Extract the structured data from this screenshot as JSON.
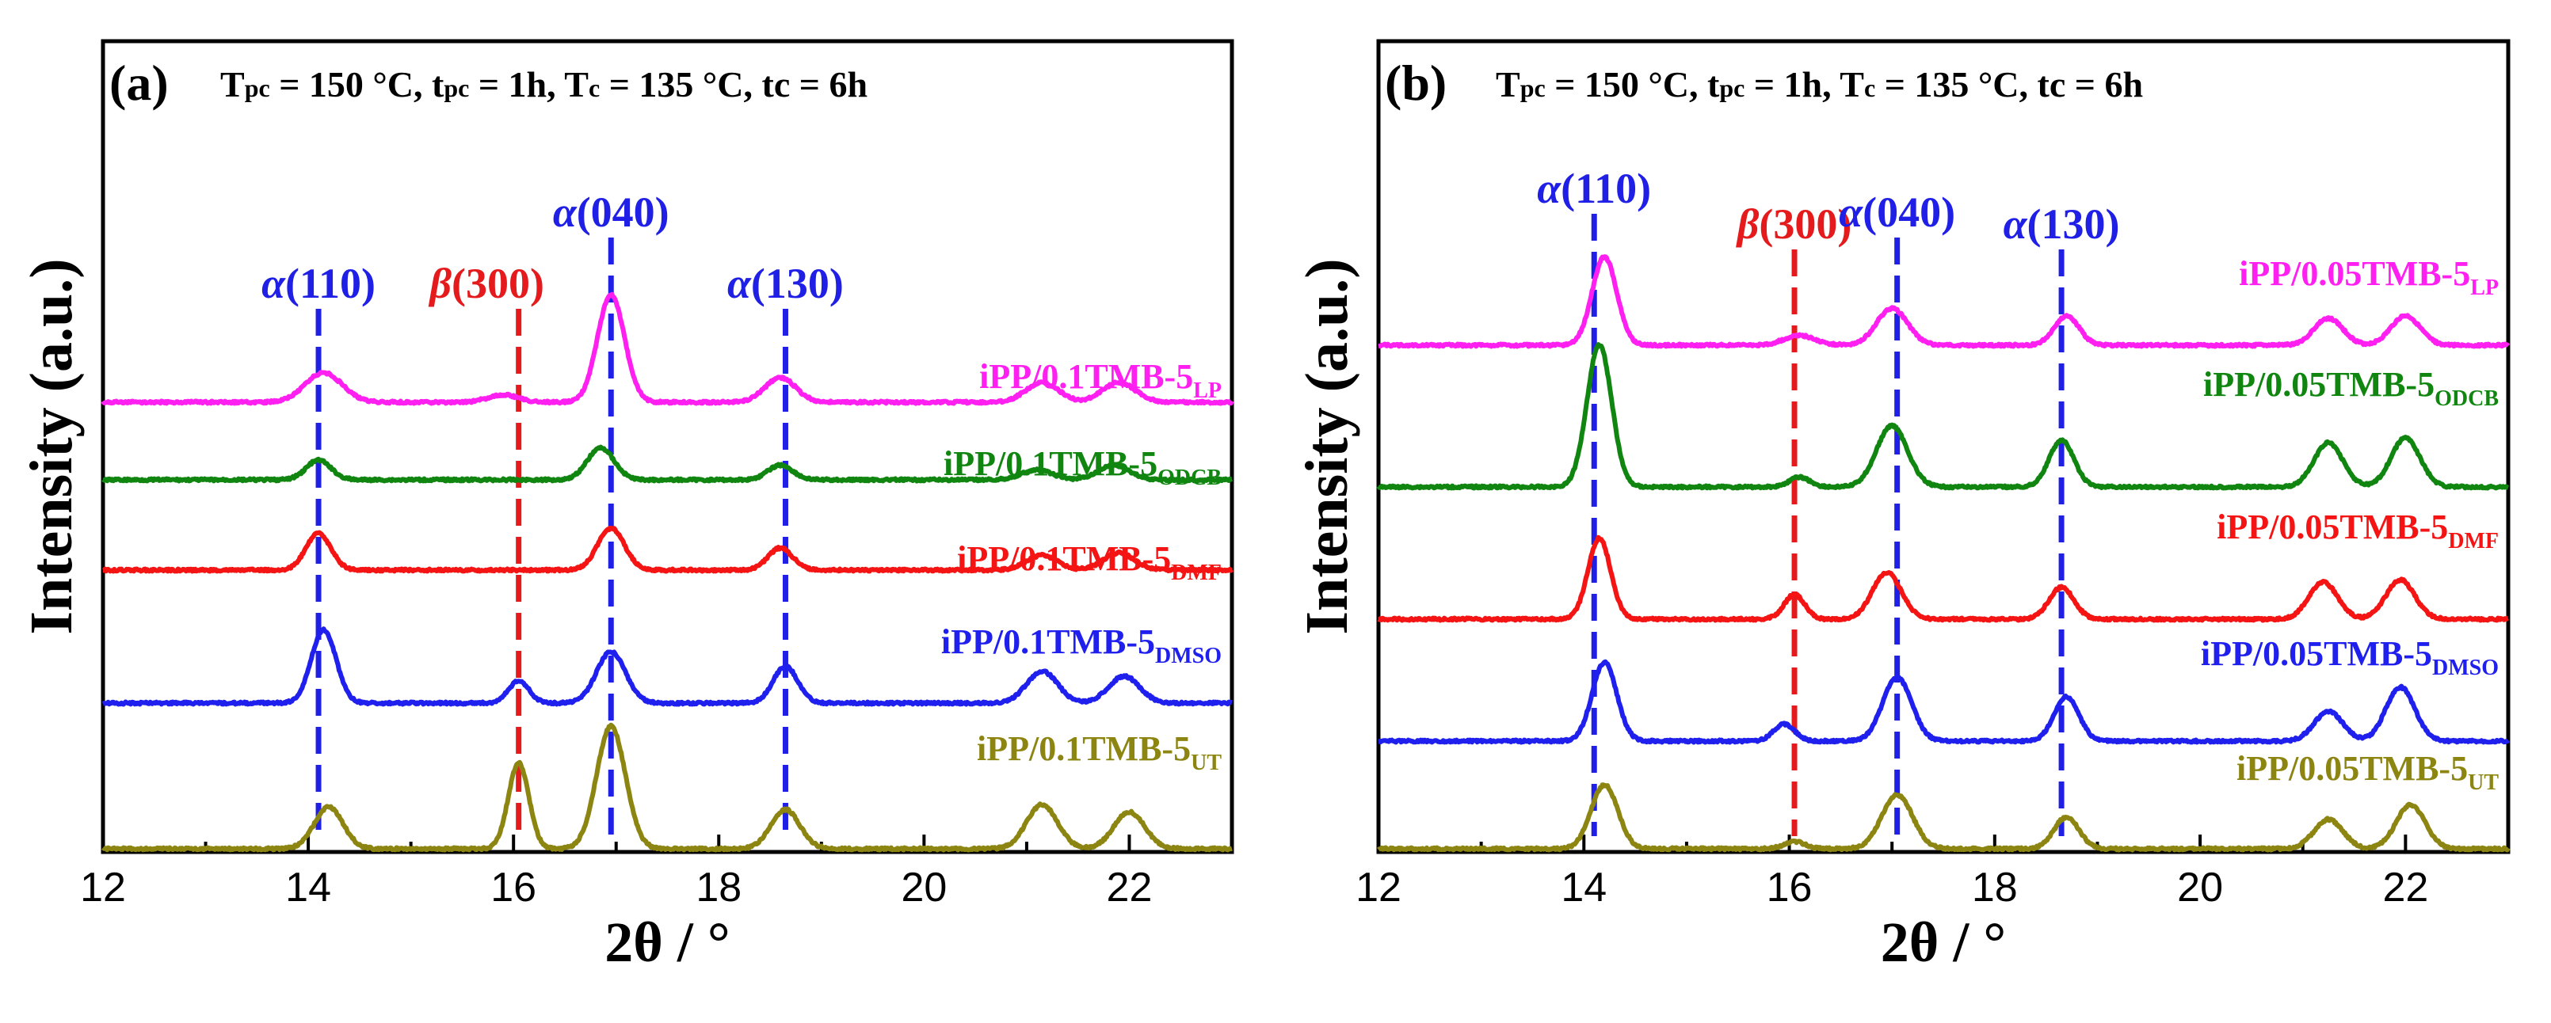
{
  "chart_data": [
    {
      "type": "line",
      "panel_label": "(a)",
      "conditions": {
        "t1": "T",
        "s1": "pc",
        "t2": " = 150 °C, t",
        "s2": "pc",
        "t3": " = 1h, T",
        "s3": "c",
        "t4": " = 135 °C, tc = 6h"
      },
      "xlabel": "2θ / °",
      "ylabel": "Intensity (a.u.)",
      "xlim": [
        12,
        23
      ],
      "x_ticks": [
        "12",
        "14",
        "16",
        "18",
        "20",
        "22"
      ],
      "peak_markers": [
        {
          "greek": "α",
          "hkl": "(110)",
          "x": 14.1,
          "color": "#1f1fe6"
        },
        {
          "greek": "β",
          "hkl": "(300)",
          "x": 16.05,
          "color": "#e41a1c"
        },
        {
          "greek": "α",
          "hkl": "(040)",
          "x": 16.95,
          "color": "#1f1fe6"
        },
        {
          "greek": "α",
          "hkl": "(130)",
          "x": 18.65,
          "color": "#1f1fe6"
        }
      ],
      "series": [
        {
          "name": "iPP/0.1TMB-5",
          "sub": "LP",
          "color": "#ff1ff0",
          "offset": 4,
          "peaks": [
            [
              14.15,
              0.6,
              0.18
            ],
            [
              15.9,
              0.15,
              0.15
            ],
            [
              16.95,
              2.2,
              0.13
            ],
            [
              18.6,
              0.5,
              0.15
            ],
            [
              21.15,
              0.4,
              0.16
            ],
            [
              21.9,
              0.4,
              0.16
            ]
          ]
        },
        {
          "name": "iPP/0.1TMB-5",
          "sub": "ODCB",
          "color": "#108510",
          "offset": 3,
          "peaks": [
            [
              14.1,
              0.4,
              0.12
            ],
            [
              16.85,
              0.65,
              0.13
            ],
            [
              18.6,
              0.3,
              0.12
            ],
            [
              21.1,
              0.2,
              0.15
            ],
            [
              21.85,
              0.3,
              0.15
            ]
          ]
        },
        {
          "name": "iPP/0.1TMB-5",
          "sub": "DMF",
          "color": "#f51414",
          "offset": 2,
          "peaks": [
            [
              14.1,
              0.75,
              0.12
            ],
            [
              16.95,
              0.85,
              0.13
            ],
            [
              18.6,
              0.45,
              0.12
            ],
            [
              21.15,
              0.3,
              0.15
            ],
            [
              21.9,
              0.35,
              0.15
            ]
          ]
        },
        {
          "name": "iPP/0.1TMB-5",
          "sub": "DMSO",
          "color": "#1f1fee",
          "offset": 1,
          "peaks": [
            [
              14.15,
              1.5,
              0.12
            ],
            [
              16.05,
              0.45,
              0.1
            ],
            [
              16.95,
              1.05,
              0.14
            ],
            [
              18.65,
              0.75,
              0.12
            ],
            [
              21.15,
              0.65,
              0.15
            ],
            [
              21.95,
              0.55,
              0.15
            ]
          ]
        },
        {
          "name": "iPP/0.1TMB-5",
          "sub": "UT",
          "color": "#8d8512",
          "offset": 0,
          "peaks": [
            [
              14.2,
              0.85,
              0.14
            ],
            [
              16.05,
              1.75,
              0.1
            ],
            [
              16.95,
              2.5,
              0.14
            ],
            [
              18.65,
              0.8,
              0.14
            ],
            [
              21.15,
              0.9,
              0.15
            ],
            [
              22.0,
              0.75,
              0.15
            ]
          ]
        }
      ]
    },
    {
      "type": "line",
      "panel_label": "(b)",
      "conditions": {
        "t1": "T",
        "s1": "pc",
        "t2": " = 150 °C, t",
        "s2": "pc",
        "t3": " = 1h, T",
        "s3": "c",
        "t4": " = 135 °C, tc = 6h"
      },
      "xlabel": "2θ / °",
      "ylabel": "Intensity (a.u.)",
      "xlim": [
        12,
        23
      ],
      "x_ticks": [
        "12",
        "14",
        "16",
        "18",
        "20",
        "22"
      ],
      "peak_markers": [
        {
          "greek": "α",
          "hkl": "(110)",
          "x": 14.1,
          "color": "#1f1fe6"
        },
        {
          "greek": "β",
          "hkl": "(300)",
          "x": 16.05,
          "color": "#e41a1c"
        },
        {
          "greek": "α",
          "hkl": "(040)",
          "x": 17.05,
          "color": "#1f1fe6"
        },
        {
          "greek": "α",
          "hkl": "(130)",
          "x": 18.65,
          "color": "#1f1fe6"
        }
      ],
      "series": [
        {
          "name": "iPP/0.05TMB-5",
          "sub": "LP",
          "color": "#ff1ff0",
          "offset": 4,
          "peaks": [
            [
              14.2,
              1.8,
              0.12
            ],
            [
              16.1,
              0.2,
              0.15
            ],
            [
              17.0,
              0.75,
              0.15
            ],
            [
              18.7,
              0.6,
              0.12
            ],
            [
              21.25,
              0.55,
              0.14
            ],
            [
              22.0,
              0.6,
              0.14
            ]
          ]
        },
        {
          "name": "iPP/0.05TMB-5",
          "sub": "ODCB",
          "color": "#108510",
          "offset": 3,
          "peaks": [
            [
              14.15,
              2.9,
              0.12
            ],
            [
              16.1,
              0.2,
              0.1
            ],
            [
              17.0,
              1.25,
              0.15
            ],
            [
              18.65,
              0.95,
              0.12
            ],
            [
              21.25,
              0.9,
              0.14
            ],
            [
              22.0,
              1.0,
              0.14
            ]
          ]
        },
        {
          "name": "iPP/0.05TMB-5",
          "sub": "DMF",
          "color": "#f51414",
          "offset": 2,
          "peaks": [
            [
              14.15,
              1.65,
              0.11
            ],
            [
              16.05,
              0.5,
              0.1
            ],
            [
              16.95,
              0.95,
              0.14
            ],
            [
              18.65,
              0.65,
              0.12
            ],
            [
              21.2,
              0.75,
              0.14
            ],
            [
              21.95,
              0.8,
              0.14
            ]
          ]
        },
        {
          "name": "iPP/0.05TMB-5",
          "sub": "DMSO",
          "color": "#1f1fee",
          "offset": 1,
          "peaks": [
            [
              14.2,
              1.6,
              0.12
            ],
            [
              15.95,
              0.35,
              0.1
            ],
            [
              17.05,
              1.3,
              0.14
            ],
            [
              18.7,
              0.9,
              0.12
            ],
            [
              21.25,
              0.6,
              0.14
            ],
            [
              21.95,
              1.1,
              0.14
            ]
          ]
        },
        {
          "name": "iPP/0.05TMB-5",
          "sub": "UT",
          "color": "#8d8512",
          "offset": 0,
          "peaks": [
            [
              14.2,
              1.3,
              0.13
            ],
            [
              16.05,
              0.15,
              0.1
            ],
            [
              17.05,
              1.1,
              0.15
            ],
            [
              18.7,
              0.65,
              0.12
            ],
            [
              21.25,
              0.6,
              0.14
            ],
            [
              22.05,
              0.9,
              0.14
            ]
          ]
        }
      ]
    }
  ]
}
